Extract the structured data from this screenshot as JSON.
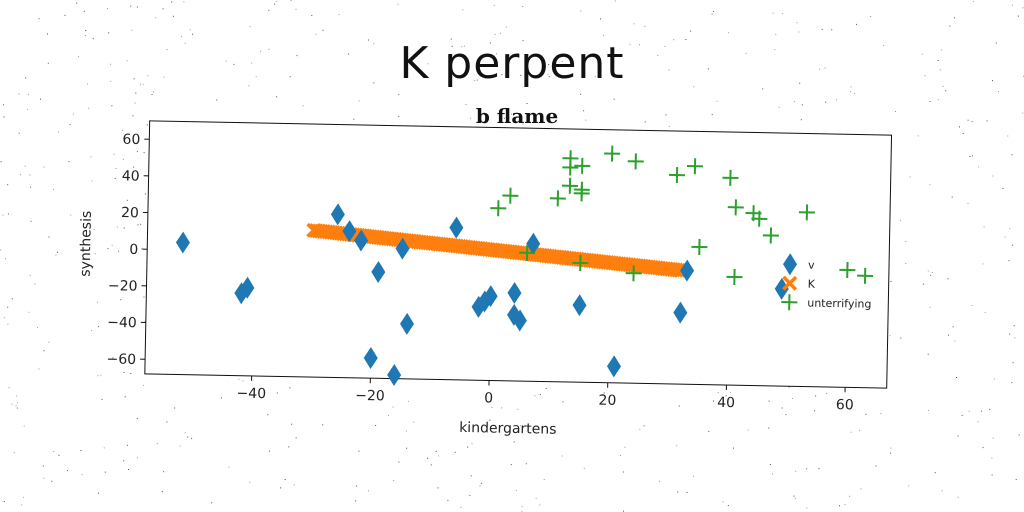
{
  "chart_data": {
    "type": "scatter",
    "title": "K perpent",
    "subtitle": "b flame",
    "xlabel": "kindergartens",
    "ylabel": "synthesis",
    "xlim": [
      -58,
      67
    ],
    "ylim": [
      -68,
      70
    ],
    "xticks": [
      -40,
      -20,
      0,
      20,
      40,
      60
    ],
    "yticks": [
      -60,
      -40,
      -20,
      0,
      20,
      40,
      60
    ],
    "xtick_labels": [
      "−40",
      "−20",
      "0",
      "20",
      "40",
      "60"
    ],
    "ytick_labels": [
      "−60",
      "−40",
      "−20",
      "0",
      "20",
      "40",
      "60"
    ],
    "grid": false,
    "legend_position": "right",
    "series": [
      {
        "name": "v",
        "marker": "diamond",
        "color": "#1f77b4",
        "points": [
          [
            -52,
            4
          ],
          [
            -42,
            -23
          ],
          [
            -41,
            -20
          ],
          [
            -26,
            21
          ],
          [
            -24,
            12
          ],
          [
            -22,
            7
          ],
          [
            -19,
            -10
          ],
          [
            -20,
            -57
          ],
          [
            -16,
            -66
          ],
          [
            -15,
            3
          ],
          [
            -14,
            -38
          ],
          [
            -6,
            15
          ],
          [
            -2,
            -28
          ],
          [
            -1,
            -25
          ],
          [
            0,
            -22
          ],
          [
            4,
            -20
          ],
          [
            4,
            -32
          ],
          [
            5,
            -35
          ],
          [
            7,
            7
          ],
          [
            15,
            -26
          ],
          [
            21,
            -59
          ],
          [
            32,
            -29
          ],
          [
            33,
            -6
          ],
          [
            49,
            -15
          ]
        ]
      },
      {
        "name": "K",
        "marker": "x",
        "color": "#ff7f0e",
        "line": {
          "x_start": -30,
          "y_start": 12,
          "x_end": 32,
          "y_end": -6,
          "count": 150
        }
      },
      {
        "name": "unterrifying",
        "marker": "plus",
        "color": "#2ca02c",
        "points": [
          [
            1,
            26
          ],
          [
            3,
            33
          ],
          [
            6,
            2
          ],
          [
            11,
            32
          ],
          [
            13,
            54
          ],
          [
            13,
            49
          ],
          [
            13,
            39
          ],
          [
            15,
            35
          ],
          [
            15,
            37
          ],
          [
            15,
            50
          ],
          [
            15,
            -3
          ],
          [
            20,
            57
          ],
          [
            24,
            53
          ],
          [
            24,
            -8
          ],
          [
            31,
            46
          ],
          [
            34,
            51
          ],
          [
            35,
            7
          ],
          [
            40,
            45
          ],
          [
            41,
            29
          ],
          [
            41,
            -9
          ],
          [
            44,
            26
          ],
          [
            45,
            23
          ],
          [
            47,
            14
          ],
          [
            53,
            27
          ],
          [
            60,
            -4
          ],
          [
            63,
            -7
          ]
        ]
      }
    ]
  }
}
